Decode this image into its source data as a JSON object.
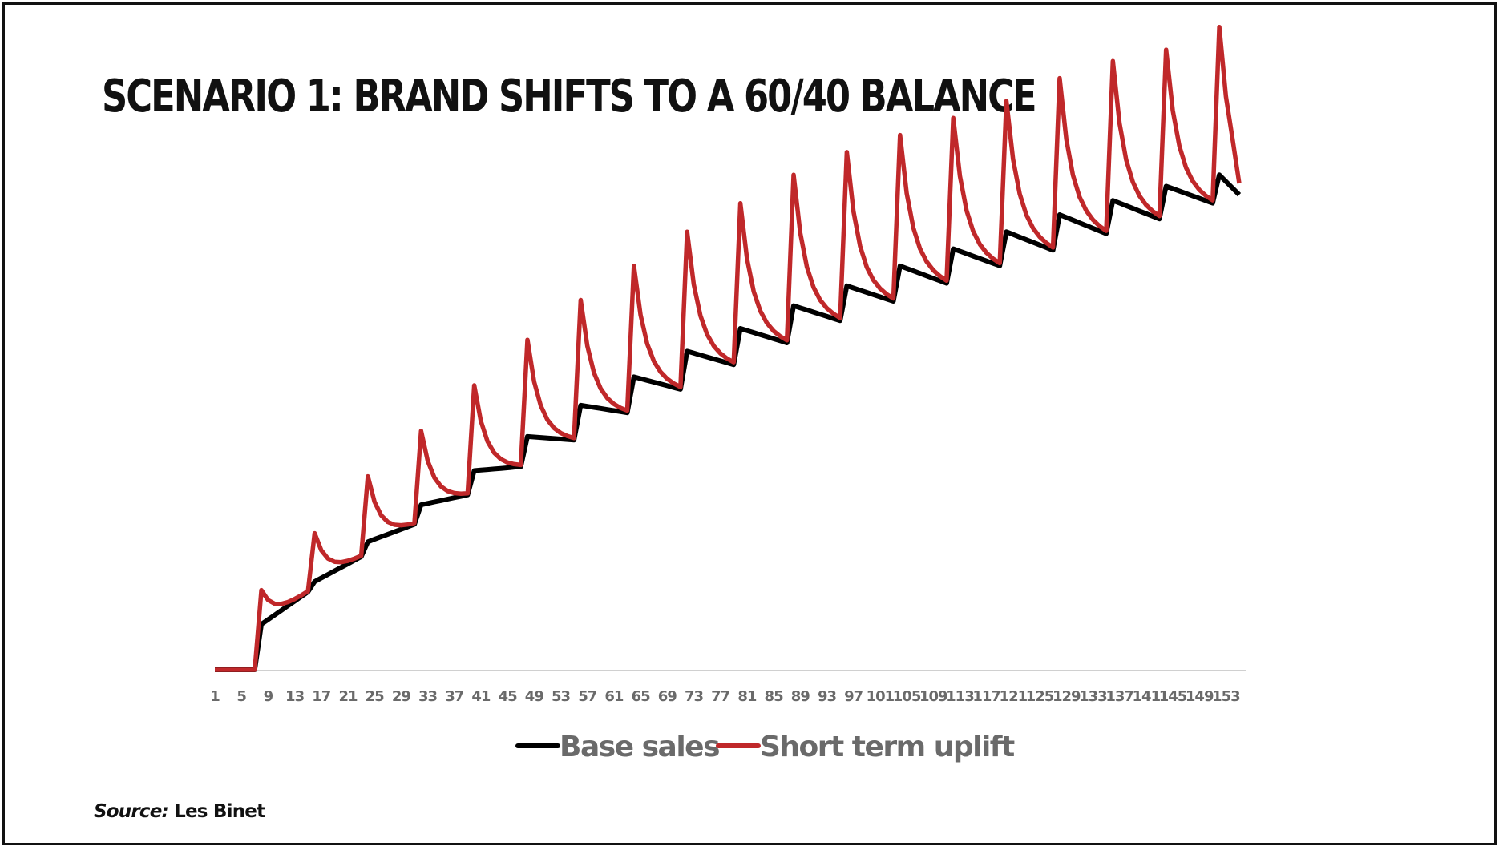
{
  "title": "SCENARIO 1: BRAND SHIFTS TO A 60/40 BALANCE",
  "source": {
    "label": "Source:",
    "value": "Les Binet"
  },
  "colors": {
    "base": "#000000",
    "uplift": "#c0282a",
    "axis": "#d0d0d0",
    "tick": "#6a6a6a"
  },
  "chart_data": {
    "type": "line",
    "title": "",
    "xlabel": "",
    "ylabel": "",
    "x_tick_labels": [
      "1",
      "5",
      "9",
      "13",
      "17",
      "21",
      "25",
      "29",
      "33",
      "37",
      "41",
      "45",
      "49",
      "53",
      "57",
      "61",
      "65",
      "69",
      "73",
      "77",
      "81",
      "85",
      "89",
      "93",
      "97",
      "101",
      "105",
      "109",
      "113",
      "117",
      "121",
      "125",
      "129",
      "133",
      "137",
      "141",
      "145",
      "149",
      "153"
    ],
    "x_range": [
      1,
      155
    ],
    "ylim": [
      0,
      100
    ],
    "y_axis_visible": false,
    "grid": false,
    "legend_position": "bottom",
    "bursts": {
      "weeks": [
        8,
        16,
        24,
        32,
        40,
        48,
        56,
        64,
        72,
        80,
        88,
        96,
        104,
        112,
        120,
        128,
        136,
        144,
        152
      ],
      "base_level_after_burst": [
        8,
        15.5,
        22.5,
        29,
        35,
        41,
        46.5,
        51.5,
        56,
        60,
        64,
        67.5,
        71,
        74,
        77,
        80,
        82.5,
        85,
        87
      ],
      "base_level_before_next_burst": [
        8,
        14.5,
        20.5,
        26,
        31,
        35.8,
        40.3,
        45,
        49,
        53.3,
        57.1,
        61,
        64.4,
        67.5,
        70.6,
        73.3,
        76.2,
        78.8,
        81.6
      ],
      "uplift_peak": [
        14,
        24,
        34,
        42,
        50,
        58,
        65,
        71,
        77,
        82,
        87,
        91,
        94,
        97,
        100,
        104,
        107,
        109,
        113
      ],
      "base_final": 83.5,
      "uplift_final": 85.5
    },
    "series": [
      {
        "name": "Base sales",
        "color": "#000000"
      },
      {
        "name": "Short term uplift",
        "color": "#c0282a"
      }
    ]
  }
}
